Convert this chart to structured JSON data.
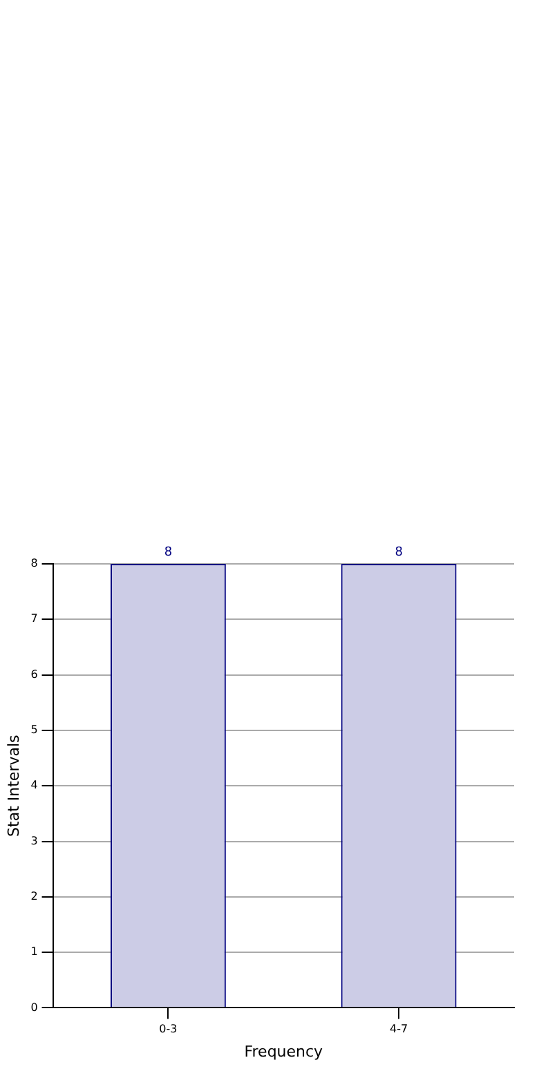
{
  "chart_data": {
    "type": "bar",
    "xlabel": "Frequency",
    "ylabel": "Stat Intervals",
    "categories": [
      "0-3",
      "4-7"
    ],
    "values": [
      8,
      8
    ],
    "color": "#ccccE6",
    "ylim": [
      0,
      8
    ],
    "yticks": [
      0,
      1,
      2,
      3,
      4,
      5,
      6,
      7,
      8
    ],
    "grid": true,
    "data_labels": true
  }
}
